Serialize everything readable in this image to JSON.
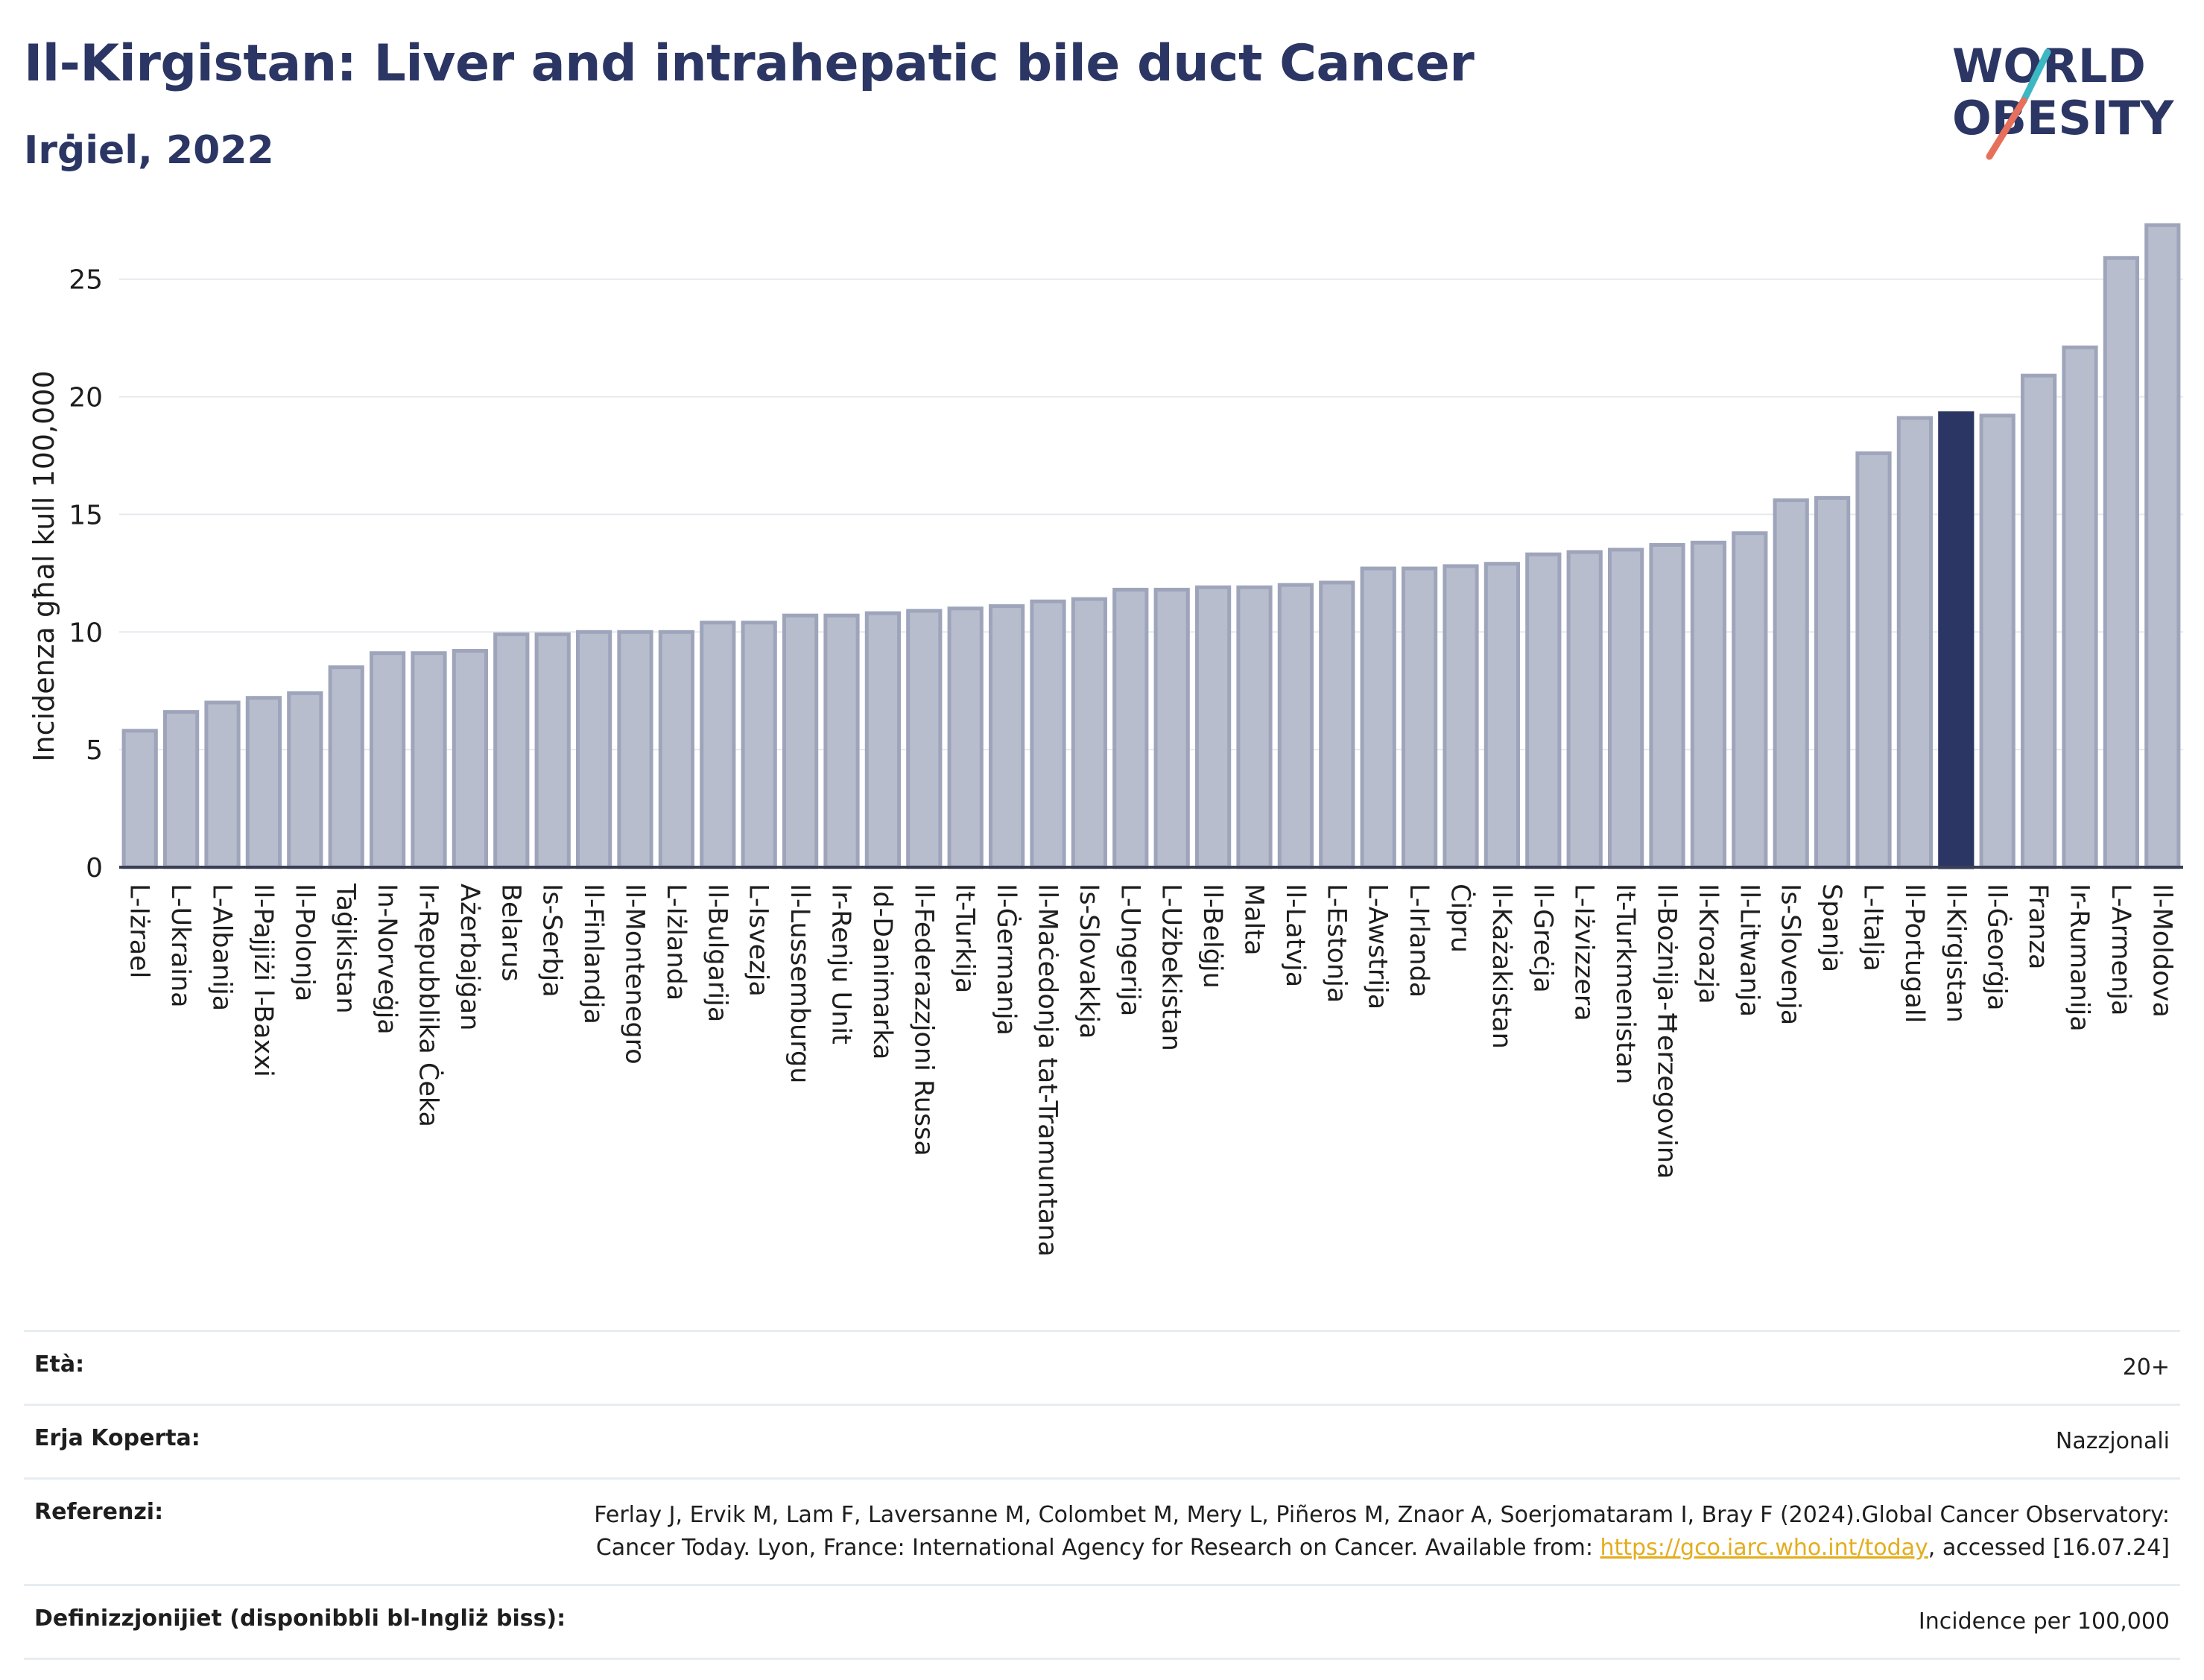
{
  "header": {
    "title": "Il-Kirgistan: Liver and intrahepatic bile duct Cancer",
    "subtitle": "Irġiel, 2022"
  },
  "logo": {
    "line1": "WORLD",
    "line2": "OBESITY"
  },
  "colors": {
    "bar": "#b8bdcd",
    "bar_stroke": "#9ea5bb",
    "highlight": "#2b3664",
    "text": "#1e1e1e",
    "grid": "#e6e9ef"
  },
  "chart_data": {
    "type": "bar",
    "ylabel": "Incidenza għal kull 100,000",
    "ylim": [
      0,
      28
    ],
    "yticks": [
      0,
      5,
      10,
      15,
      20,
      25
    ],
    "highlight": "Il-Kirgistan",
    "categories": [
      "L-Iżrael",
      "L-Ukraina",
      "L-Albanija",
      "Il-Pajjiżi l-Baxxi",
      "Il-Polonja",
      "Taġikistan",
      "In-Norveġja",
      "Ir-Repubblika Ċeka",
      "Ażerbajġan",
      "Belarus",
      "Is-Serbja",
      "Il-Finlandja",
      "Il-Montenegro",
      "L-Iżlanda",
      "Il-Bulgarija",
      "L-Isvezja",
      "Il-Lussemburgu",
      "Ir-Renju Unit",
      "Id-Danimarka",
      "Il-Federazzjoni Russa",
      "It-Turkija",
      "Il-Ġermanja",
      "Il-Maċedonja tat-Tramuntana",
      "Is-Slovakkja",
      "L-Ungerija",
      "L-Użbekistan",
      "Il-Belġju",
      "Malta",
      "Il-Latvja",
      "L-Estonja",
      "L-Awstrija",
      "L-Irlanda",
      "Ċipru",
      "Il-Każakistan",
      "Il-Greċja",
      "L-Iżvizzera",
      "It-Turkmenistan",
      "Il-Bożnija-Ħerzegovina",
      "Il-Kroazja",
      "Il-Litwanja",
      "Is-Slovenja",
      "Spanja",
      "L-Italja",
      "Il-Portugall",
      "Il-Kirgistan",
      "Il-Ġeorġja",
      "Franza",
      "Ir-Rumanija",
      "L-Armenja",
      "Il-Moldova"
    ],
    "values": [
      5.8,
      6.6,
      7.0,
      7.2,
      7.4,
      8.5,
      9.1,
      9.1,
      9.2,
      9.9,
      9.9,
      10.0,
      10.0,
      10.0,
      10.4,
      10.4,
      10.7,
      10.7,
      10.8,
      10.9,
      11.0,
      11.1,
      11.3,
      11.4,
      11.8,
      11.8,
      11.9,
      11.9,
      12.0,
      12.1,
      12.7,
      12.7,
      12.8,
      12.9,
      13.3,
      13.4,
      13.5,
      13.7,
      13.8,
      14.2,
      15.6,
      15.7,
      17.6,
      19.1,
      19.3,
      19.2,
      20.9,
      22.1,
      25.9,
      27.3
    ]
  },
  "info": {
    "age_label": "Età:",
    "age_value": "20+",
    "coverage_label": "Erja Koperta:",
    "coverage_value": "Nazzjonali",
    "ref_label": "Referenzi:",
    "ref_text_1": "Ferlay J, Ervik M, Lam F, Laversanne M, Colombet M, Mery L, Piñeros M, Znaor A, Soerjomataram I, Bray F (2024).Global Cancer Observatory: Cancer Today. Lyon, France: International Agency for Research on Cancer. Available from: ",
    "ref_link": "https://gco.iarc.who.int/today",
    "ref_text_2": ", accessed [16.07.24]",
    "def_label": "Definizzjonijiet (disponibbli bl-Ingliż biss):",
    "def_value": "Incidence per 100,000"
  }
}
